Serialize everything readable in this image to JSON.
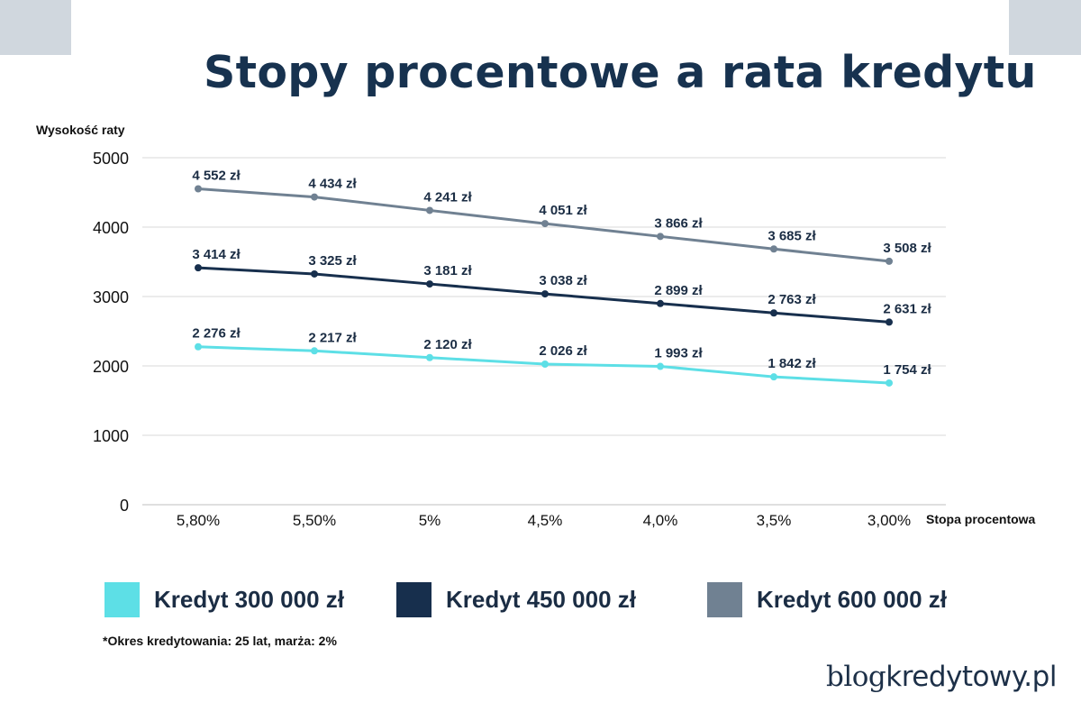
{
  "title": "Stopy procentowe a rata kredytu",
  "colors": {
    "s300": "#5ddfe6",
    "s450": "#172f4d",
    "s600": "#708192",
    "title": "#17324f",
    "grid": "#d9d9d9",
    "corner": "#d0d7de"
  },
  "legend": [
    {
      "label": "Kredyt 300 000 zł",
      "color": "#5ddfe6"
    },
    {
      "label": "Kredyt 450 000 zł",
      "color": "#172f4d"
    },
    {
      "label": "Kredyt 600 000 zł",
      "color": "#708192"
    }
  ],
  "footnote": "*Okres kredytowania: 25 lat, marża: 2%",
  "logo": {
    "part1": "blog",
    "part2": "kredytowy.pl"
  },
  "chart_data": {
    "type": "line",
    "title": "Stopy procentowe a rata kredytu",
    "xlabel": "Stopa procentowa",
    "ylabel": "Wysokość raty",
    "categories": [
      "5,80%",
      "5,50%",
      "5%",
      "4,5%",
      "4,0%",
      "3,5%",
      "3,00%"
    ],
    "yticks": [
      0,
      1000,
      2000,
      3000,
      4000,
      5000
    ],
    "ylim": [
      0,
      5000
    ],
    "grid": true,
    "legend_position": "bottom",
    "series": [
      {
        "name": "Kredyt 300 000 zł",
        "color": "#5ddfe6",
        "values": [
          2276,
          2217,
          2120,
          2026,
          1993,
          1842,
          1754
        ],
        "labels": [
          "2 276 zł",
          "2 217 zł",
          "2 120 zł",
          "2 026 zł",
          "1 993 zł",
          "1 842 zł",
          "1 754 zł"
        ]
      },
      {
        "name": "Kredyt 450 000 zł",
        "color": "#172f4d",
        "values": [
          3414,
          3325,
          3181,
          3038,
          2899,
          2763,
          2631
        ],
        "labels": [
          "3 414 zł",
          "3 325 zł",
          "3 181 zł",
          "3 038 zł",
          "2 899 zł",
          "2 763 zł",
          "2 631 zł"
        ]
      },
      {
        "name": "Kredyt 600 000 zł",
        "color": "#708192",
        "values": [
          4552,
          4434,
          4241,
          4051,
          3866,
          3685,
          3508
        ],
        "labels": [
          "4 552 zł",
          "4 434 zł",
          "4 241 zł",
          "4 051 zł",
          "3 866 zł",
          "3 685 zł",
          "3 508 zł"
        ]
      }
    ]
  }
}
